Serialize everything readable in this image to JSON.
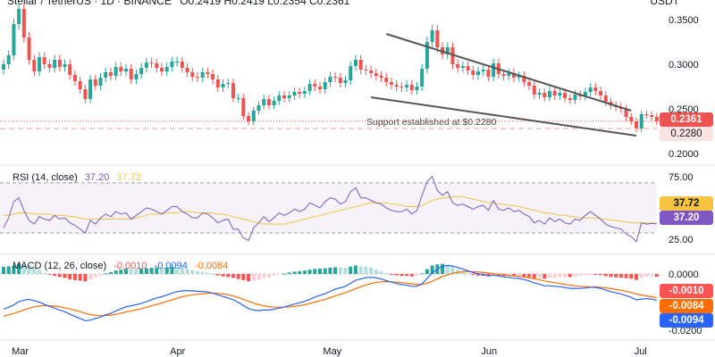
{
  "header": {
    "symbol_line": "Stellar / TetherUS · 1D · BINANCE",
    "ohlc_line": "O0.2419 H0.2419 L0.2354 C0.2361",
    "quote_unit": "USDT"
  },
  "colors": {
    "up": "#26a69a",
    "down": "#ef5350",
    "rsi": "#7e57c2",
    "rsi_ma": "#f5c242",
    "macd": "#2962ff",
    "signal": "#ff6d00",
    "hist_up_strong": "#26a69a",
    "hist_up_weak": "#b2dfdb",
    "hist_down_strong": "#ff5252",
    "hist_down_weak": "#ffcdd2",
    "wedge": "#555555",
    "support": "#ef9a9a"
  },
  "chart_data": [
    {
      "type": "candlestick",
      "title": "Stellar / TetherUS · 1D · BINANCE",
      "ylabel": "USDT",
      "ylim": [
        0.19,
        0.37
      ],
      "yticks": [
        "0.3500",
        "0.3000",
        "0.2500",
        "0.2000"
      ],
      "ytick_values": [
        0.35,
        0.3,
        0.25,
        0.2
      ],
      "x_start": "2024-02-27",
      "x_end": "2024-06-30",
      "xticks": [
        {
          "label": "Mar",
          "date": "2024-03-01"
        },
        {
          "label": "Apr",
          "date": "2024-04-01"
        },
        {
          "label": "May",
          "date": "2024-05-01"
        },
        {
          "label": "Jun",
          "date": "2024-06-01"
        },
        {
          "label": "Jul",
          "date": "2024-07-01"
        }
      ],
      "start_date": "2024-02-27",
      "closes": [
        0.3,
        0.31,
        0.345,
        0.362,
        0.33,
        0.305,
        0.292,
        0.308,
        0.3,
        0.296,
        0.305,
        0.297,
        0.3,
        0.288,
        0.281,
        0.272,
        0.261,
        0.283,
        0.276,
        0.285,
        0.291,
        0.287,
        0.297,
        0.292,
        0.295,
        0.283,
        0.289,
        0.296,
        0.302,
        0.301,
        0.296,
        0.292,
        0.297,
        0.303,
        0.303,
        0.296,
        0.291,
        0.286,
        0.285,
        0.291,
        0.289,
        0.283,
        0.274,
        0.278,
        0.279,
        0.262,
        0.262,
        0.242,
        0.236,
        0.248,
        0.254,
        0.261,
        0.254,
        0.259,
        0.265,
        0.262,
        0.265,
        0.269,
        0.267,
        0.27,
        0.278,
        0.275,
        0.272,
        0.28,
        0.286,
        0.285,
        0.279,
        0.282,
        0.298,
        0.305,
        0.294,
        0.293,
        0.29,
        0.287,
        0.285,
        0.28,
        0.277,
        0.275,
        0.274,
        0.277,
        0.271,
        0.275,
        0.295,
        0.325,
        0.338,
        0.319,
        0.311,
        0.319,
        0.3,
        0.296,
        0.298,
        0.293,
        0.288,
        0.292,
        0.294,
        0.286,
        0.301,
        0.289,
        0.287,
        0.29,
        0.285,
        0.287,
        0.28,
        0.276,
        0.266,
        0.268,
        0.263,
        0.27,
        0.265,
        0.268,
        0.262,
        0.26,
        0.266,
        0.264,
        0.269,
        0.274,
        0.27,
        0.265,
        0.258,
        0.254,
        0.252,
        0.25,
        0.241,
        0.236,
        0.228,
        0.244,
        0.243,
        0.241,
        0.236
      ],
      "support_level": 0.228,
      "support_text": "Support established at $0.2280",
      "last_price": "0.2361",
      "support_tag": "0.2280",
      "wedge_upper": [
        {
          "date": "2024-05-12",
          "value": 0.334
        },
        {
          "date": "2024-06-29",
          "value": 0.248
        }
      ],
      "wedge_lower": [
        {
          "date": "2024-05-09",
          "value": 0.263
        },
        {
          "date": "2024-06-30",
          "value": 0.22
        }
      ]
    },
    {
      "type": "line",
      "title": "RSI (14, close)",
      "legend_values": [
        "37.20",
        "37.72"
      ],
      "ylim": [
        15,
        82
      ],
      "yticks": [
        "75.00",
        "25.00"
      ],
      "ytick_values": [
        75,
        25
      ],
      "band": [
        30,
        70
      ],
      "series": [
        {
          "name": "RSI",
          "values": [
            34,
            42,
            55,
            58,
            48,
            40,
            37,
            43,
            41,
            40,
            44,
            41,
            42,
            38,
            36,
            33,
            30,
            40,
            37,
            42,
            45,
            43,
            47,
            45,
            46,
            41,
            44,
            47,
            50,
            49,
            47,
            45,
            48,
            51,
            51,
            47,
            45,
            42,
            42,
            46,
            45,
            42,
            38,
            40,
            41,
            33,
            33,
            26,
            24,
            34,
            38,
            43,
            39,
            42,
            46,
            44,
            46,
            49,
            47,
            49,
            54,
            52,
            50,
            55,
            58,
            57,
            53,
            55,
            63,
            66,
            58,
            58,
            56,
            54,
            53,
            50,
            48,
            47,
            47,
            49,
            45,
            48,
            60,
            71,
            75,
            64,
            60,
            63,
            54,
            52,
            53,
            51,
            49,
            51,
            52,
            48,
            56,
            49,
            48,
            50,
            47,
            48,
            45,
            43,
            38,
            40,
            37,
            42,
            39,
            41,
            38,
            37,
            41,
            40,
            44,
            47,
            44,
            41,
            37,
            35,
            34,
            33,
            29,
            27,
            23,
            38,
            37,
            37.5,
            37.2
          ]
        },
        {
          "name": "RSI-based MA",
          "values": [
            44,
            44,
            45,
            46,
            46,
            46,
            45,
            45,
            45,
            45,
            44,
            44,
            44,
            43,
            43,
            42,
            41,
            41,
            41,
            41,
            41,
            41,
            41,
            41,
            41,
            41,
            42,
            43,
            44,
            45,
            45,
            45,
            46,
            46,
            46,
            47,
            47,
            47,
            46,
            46,
            46,
            46,
            45,
            45,
            44,
            43,
            42,
            41,
            40,
            39,
            38,
            37,
            37,
            37,
            37,
            37,
            38,
            39,
            40,
            41,
            42,
            43,
            44,
            45,
            46,
            47,
            48,
            49,
            50,
            51,
            52,
            53,
            54,
            54,
            54,
            54,
            53,
            53,
            52,
            51,
            51,
            51,
            52,
            54,
            56,
            57,
            58,
            58,
            59,
            59,
            59,
            58,
            57,
            56,
            55,
            54,
            54,
            53,
            53,
            52,
            52,
            51,
            50,
            49,
            48,
            47,
            46,
            46,
            45,
            44,
            44,
            43,
            43,
            42,
            42,
            42,
            42,
            41,
            41,
            40,
            40,
            39,
            39,
            38,
            38,
            38,
            37.9,
            37.8,
            37.72
          ]
        }
      ]
    },
    {
      "type": "line+bar",
      "title": "MACD (12, 26, close)",
      "legend_values": [
        "-0.0010",
        "-0.0094",
        "-0.0084"
      ],
      "ylim": [
        -0.0225,
        0.006
      ],
      "yticks": [
        "0.0000",
        "-0.0200"
      ],
      "ytick_values": [
        0,
        -0.02
      ],
      "tags": [
        "-0.0010",
        "-0.0084",
        "-0.0094"
      ],
      "series": [
        {
          "name": "MACD",
          "values": [
            -0.0125,
            -0.0118,
            -0.011,
            -0.0098,
            -0.0093,
            -0.009,
            -0.0095,
            -0.01,
            -0.0108,
            -0.0115,
            -0.0121,
            -0.0128,
            -0.0134,
            -0.0143,
            -0.0151,
            -0.0158,
            -0.0166,
            -0.0164,
            -0.0158,
            -0.0153,
            -0.0145,
            -0.014,
            -0.0131,
            -0.0124,
            -0.0116,
            -0.0113,
            -0.0109,
            -0.0104,
            -0.0098,
            -0.0091,
            -0.0085,
            -0.0081,
            -0.0075,
            -0.0068,
            -0.0063,
            -0.006,
            -0.0059,
            -0.006,
            -0.0062,
            -0.0062,
            -0.0064,
            -0.0068,
            -0.0074,
            -0.008,
            -0.0085,
            -0.0092,
            -0.0101,
            -0.0112,
            -0.0123,
            -0.0128,
            -0.013,
            -0.0128,
            -0.0128,
            -0.0125,
            -0.0121,
            -0.0117,
            -0.0112,
            -0.0107,
            -0.0102,
            -0.0097,
            -0.009,
            -0.0082,
            -0.0076,
            -0.007,
            -0.0062,
            -0.0054,
            -0.0049,
            -0.0044,
            -0.0033,
            -0.0022,
            -0.0018,
            -0.0013,
            -0.0012,
            -0.0014,
            -0.0018,
            -0.0024,
            -0.0029,
            -0.0034,
            -0.0038,
            -0.004,
            -0.0044,
            -0.0044,
            -0.0035,
            -0.0016,
            0.0004,
            0.0017,
            0.0027,
            0.003,
            0.0028,
            0.0023,
            0.0017,
            0.0011,
            0.0005,
            0.0001,
            -0.0002,
            -0.0006,
            -0.0004,
            -0.0007,
            -0.001,
            -0.0012,
            -0.0015,
            -0.0016,
            -0.002,
            -0.0025,
            -0.0032,
            -0.0036,
            -0.0042,
            -0.0042,
            -0.0044,
            -0.0045,
            -0.0048,
            -0.0051,
            -0.0051,
            -0.0051,
            -0.005,
            -0.0047,
            -0.0048,
            -0.0051,
            -0.0057,
            -0.0063,
            -0.0067,
            -0.0071,
            -0.0077,
            -0.0083,
            -0.0092,
            -0.0089,
            -0.0088,
            -0.0089,
            -0.0094
          ]
        },
        {
          "name": "Signal",
          "values": [
            -0.015,
            -0.0145,
            -0.014,
            -0.0134,
            -0.0127,
            -0.0121,
            -0.0117,
            -0.0114,
            -0.0112,
            -0.0113,
            -0.0114,
            -0.0117,
            -0.012,
            -0.0124,
            -0.0129,
            -0.0134,
            -0.014,
            -0.0144,
            -0.0147,
            -0.0148,
            -0.0147,
            -0.0146,
            -0.0143,
            -0.0139,
            -0.0135,
            -0.0131,
            -0.0127,
            -0.0123,
            -0.0118,
            -0.0113,
            -0.0108,
            -0.0103,
            -0.0097,
            -0.0092,
            -0.0086,
            -0.0081,
            -0.0077,
            -0.0074,
            -0.0072,
            -0.007,
            -0.0069,
            -0.0068,
            -0.0069,
            -0.0071,
            -0.0074,
            -0.0078,
            -0.0083,
            -0.009,
            -0.0097,
            -0.0104,
            -0.0109,
            -0.0113,
            -0.0116,
            -0.0118,
            -0.0118,
            -0.0118,
            -0.0117,
            -0.0115,
            -0.0112,
            -0.0109,
            -0.0105,
            -0.01,
            -0.0095,
            -0.009,
            -0.0084,
            -0.0078,
            -0.0072,
            -0.0066,
            -0.0059,
            -0.0052,
            -0.0045,
            -0.0039,
            -0.0034,
            -0.003,
            -0.0028,
            -0.0027,
            -0.0028,
            -0.0029,
            -0.0031,
            -0.0033,
            -0.0035,
            -0.0037,
            -0.0037,
            -0.0033,
            -0.0026,
            -0.0017,
            -0.0009,
            -0.0003,
            0.0002,
            0.0006,
            0.0008,
            0.0009,
            0.0008,
            0.0007,
            0.0005,
            0.0003,
            0.0001,
            -0.0001,
            -0.0003,
            -0.0005,
            -0.0007,
            -0.0009,
            -0.0011,
            -0.0014,
            -0.0017,
            -0.0021,
            -0.0025,
            -0.0028,
            -0.0031,
            -0.0034,
            -0.0037,
            -0.004,
            -0.0042,
            -0.0044,
            -0.0045,
            -0.0046,
            -0.0046,
            -0.0047,
            -0.0049,
            -0.0052,
            -0.0055,
            -0.0058,
            -0.0062,
            -0.0066,
            -0.0071,
            -0.0075,
            -0.0078,
            -0.0081,
            -0.0084
          ]
        }
      ]
    }
  ]
}
